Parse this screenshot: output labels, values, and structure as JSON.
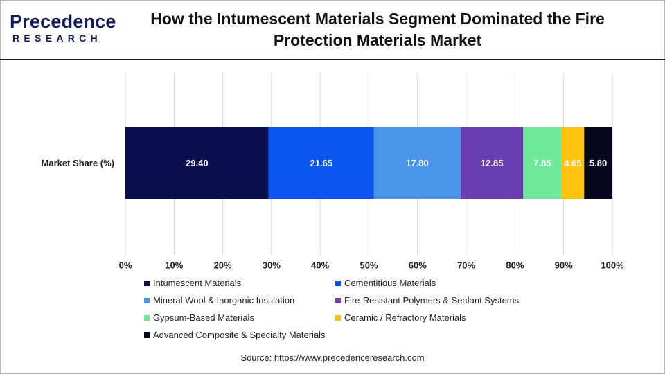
{
  "header": {
    "logo_text_a": "Precedence",
    "logo_text_b": "RESEARCH",
    "title": "How the Intumescent Materials Segment Dominated the Fire Protection Materials Market"
  },
  "chart_data": {
    "type": "bar",
    "orientation": "horizontal",
    "stacked": true,
    "categories": [
      "Market Share (%)"
    ],
    "xlim": [
      0,
      100
    ],
    "x_ticks": [
      "0%",
      "10%",
      "20%",
      "30%",
      "40%",
      "50%",
      "60%",
      "70%",
      "80%",
      "90%",
      "100%"
    ],
    "grid": true,
    "legend_position": "bottom",
    "series": [
      {
        "name": "Intumescent Materials",
        "values": [
          29.4
        ],
        "label": "29.40",
        "color": "#0b0e4f"
      },
      {
        "name": "Cementitious Materials",
        "values": [
          21.65
        ],
        "label": "21.65",
        "color": "#0a55f0"
      },
      {
        "name": "Mineral Wool & Inorganic Insulation",
        "values": [
          17.8
        ],
        "label": "17.80",
        "color": "#4a94ea"
      },
      {
        "name": "Fire-Resistant Polymers & Sealant Systems",
        "values": [
          12.85
        ],
        "label": "12.85",
        "color": "#6a3db0"
      },
      {
        "name": "Gypsum-Based Materials",
        "values": [
          7.85
        ],
        "label": "7.85",
        "color": "#6ee89b"
      },
      {
        "name": "Ceramic / Refractory Materials",
        "values": [
          4.65
        ],
        "label": "4.65",
        "color": "#ffc20e"
      },
      {
        "name": "Advanced Composite & Specialty Materials",
        "values": [
          5.8
        ],
        "label": "5.80",
        "color": "#06061f"
      }
    ]
  },
  "source": "Source: https://www.precedenceresearch.com"
}
